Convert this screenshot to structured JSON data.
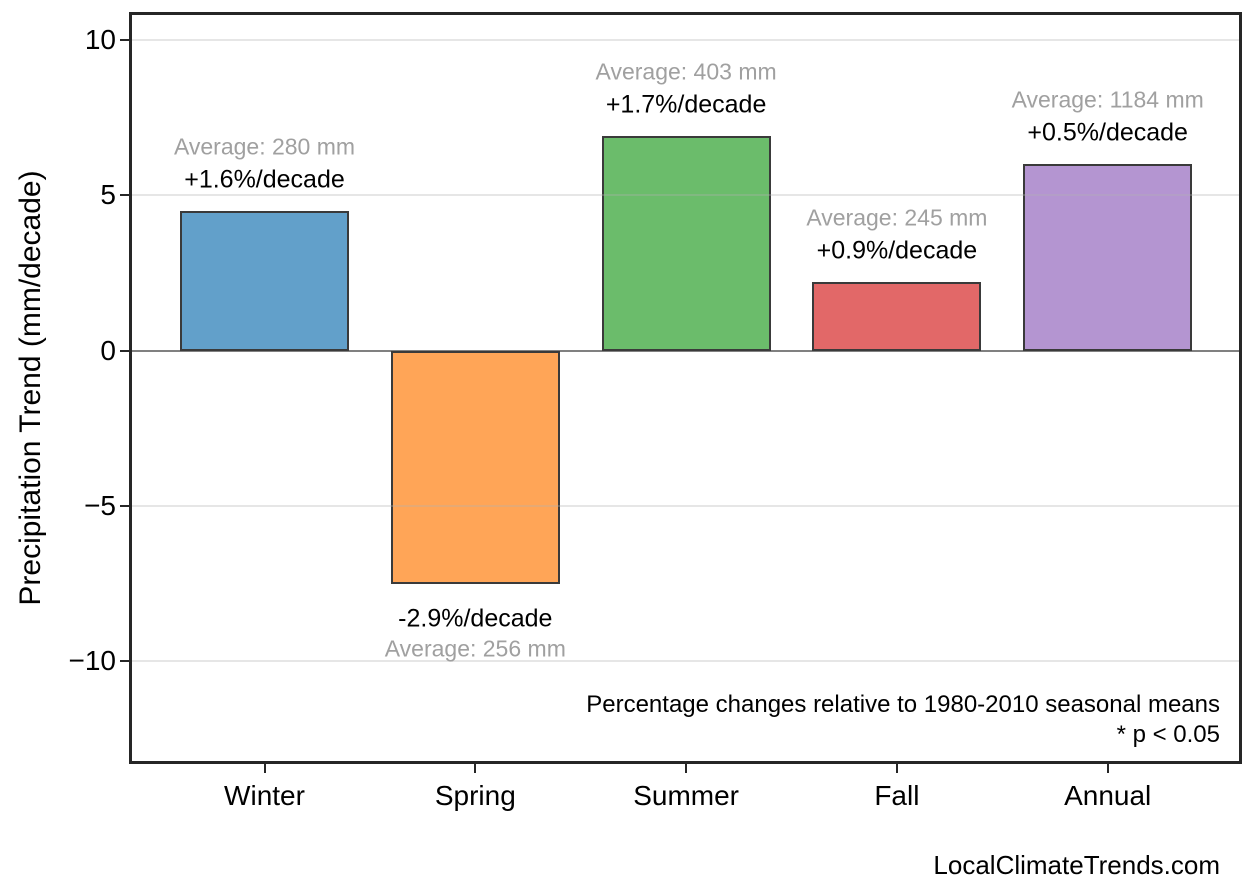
{
  "figure": {
    "footer": "LocalClimateTrends.com"
  },
  "chart_data": {
    "type": "bar",
    "title": "",
    "xlabel": "",
    "ylabel": "Precipitation Trend (mm/decade)",
    "categories": [
      "Winter",
      "Spring",
      "Summer",
      "Fall",
      "Annual"
    ],
    "values": [
      4.5,
      -7.5,
      6.9,
      2.2,
      6.0
    ],
    "values_unit": "mm/decade",
    "bar_labels": [
      {
        "pct": "+1.6%/decade",
        "avg": "Average: 280 mm"
      },
      {
        "pct": "-2.9%/decade",
        "avg": "Average: 256 mm"
      },
      {
        "pct": "+1.7%/decade",
        "avg": "Average: 403 mm"
      },
      {
        "pct": "+0.9%/decade",
        "avg": "Average: 245 mm"
      },
      {
        "pct": "+0.5%/decade",
        "avg": "Average: 1184 mm"
      }
    ],
    "bar_colors": [
      "#62a0ca",
      "#ffa557",
      "#6bbc6b",
      "#e26868",
      "#b495d1"
    ],
    "bar_edge_color": "#3a3a3a",
    "yticks": [
      10,
      5,
      0,
      -5,
      -10
    ],
    "ytick_labels": [
      "10",
      "5",
      "0",
      "−5",
      "−10"
    ],
    "ylim": [
      -13.3,
      10.9
    ],
    "grid": true,
    "grid_values": [
      10,
      5,
      -5,
      -10
    ],
    "zero_line_value": 0,
    "legend": null,
    "colors": {
      "grid": "#ececec",
      "zero_line": "#808080",
      "avg_text": "#a0a0a0",
      "pct_text": "#000000",
      "axis_border": "#262626"
    },
    "annotations": [
      "Percentage changes relative to 1980-2010 seasonal means",
      "* p < 0.05"
    ]
  }
}
